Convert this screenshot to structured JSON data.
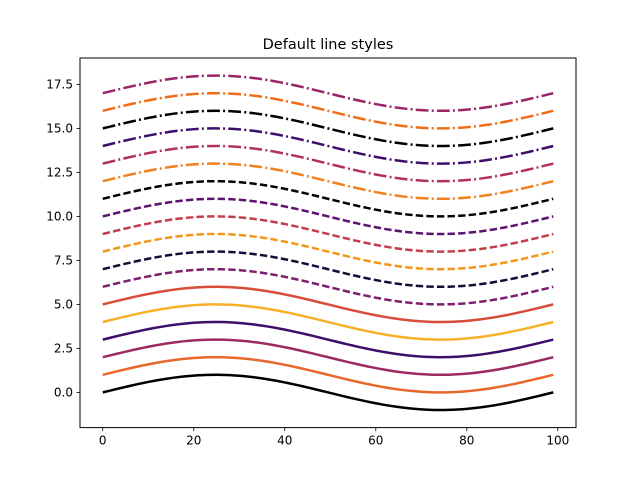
{
  "chart_data": {
    "type": "line",
    "title": "Default line styles",
    "xlabel": "",
    "ylabel": "",
    "xlim": [
      -5,
      104
    ],
    "ylim": [
      -2.0,
      19.0
    ],
    "x_ticks": [
      0,
      20,
      40,
      60,
      80,
      100
    ],
    "y_ticks": [
      0.0,
      2.5,
      5.0,
      7.5,
      10.0,
      12.5,
      15.0,
      17.5
    ],
    "x_tick_labels": [
      "0",
      "20",
      "40",
      "60",
      "80",
      "100"
    ],
    "y_tick_labels": [
      "0.0",
      "2.5",
      "5.0",
      "7.5",
      "10.0",
      "12.5",
      "15.0",
      "17.5"
    ],
    "grid": false,
    "legend": false,
    "x": {
      "start": 0,
      "end": 99,
      "step": 1
    },
    "curve": "y = offset + sin(2*pi*x/99)",
    "series": [
      {
        "offset": 0,
        "color": "#000000",
        "style": "solid"
      },
      {
        "offset": 1,
        "color": "#e8682c",
        "style": "solid"
      },
      {
        "offset": 2,
        "color": "#9c2a62",
        "style": "solid"
      },
      {
        "offset": 3,
        "color": "#3c0f6a",
        "style": "solid"
      },
      {
        "offset": 4,
        "color": "#f5b12a",
        "style": "solid"
      },
      {
        "offset": 5,
        "color": "#d84c3a",
        "style": "solid"
      },
      {
        "offset": 6,
        "color": "#7d1e6e",
        "style": "dashed"
      },
      {
        "offset": 7,
        "color": "#150d38",
        "style": "dashed"
      },
      {
        "offset": 8,
        "color": "#f3971b",
        "style": "dashed"
      },
      {
        "offset": 9,
        "color": "#c33e4c",
        "style": "dashed"
      },
      {
        "offset": 10,
        "color": "#5c126e",
        "style": "dashed"
      },
      {
        "offset": 11,
        "color": "#000000",
        "style": "dashed"
      },
      {
        "offset": 12,
        "color": "#f0811e",
        "style": "dashdot"
      },
      {
        "offset": 13,
        "color": "#b13255",
        "style": "dashdot"
      },
      {
        "offset": 14,
        "color": "#3e0e6b",
        "style": "dashdot"
      },
      {
        "offset": 15,
        "color": "#000000",
        "style": "dashdot"
      },
      {
        "offset": 16,
        "color": "#ef6d19",
        "style": "dashdot"
      },
      {
        "offset": 17,
        "color": "#9b2367",
        "style": "dashdot"
      }
    ]
  }
}
